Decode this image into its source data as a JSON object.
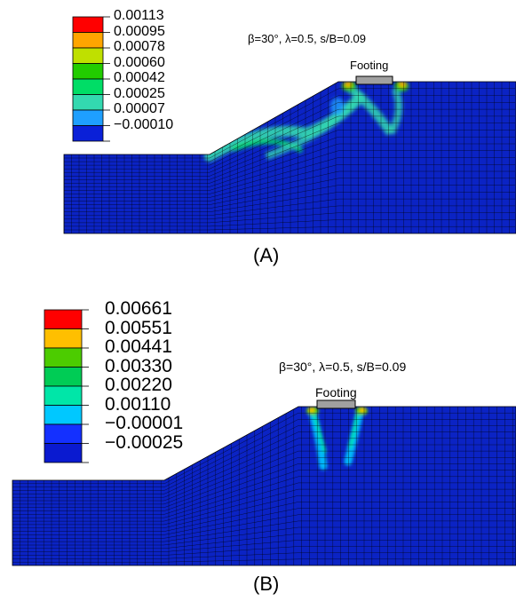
{
  "panel_a": {
    "caption": "(A)",
    "params": "β=30°, λ=0.5, s/B=0.09",
    "footing_label": "Footing",
    "legend": [
      {
        "value": "0.00113",
        "color": "#ff0000"
      },
      {
        "value": "0.00095",
        "color": "#ffa500"
      },
      {
        "value": "0.00078",
        "color": "#bfe000"
      },
      {
        "value": "0.00060",
        "color": "#22cc00"
      },
      {
        "value": "0.00042",
        "color": "#00dd66"
      },
      {
        "value": "0.00025",
        "color": "#33d9b0"
      },
      {
        "value": "0.00007",
        "color": "#1e9fff"
      },
      {
        "value": "-0.00010",
        "color": "#0a20d8"
      }
    ]
  },
  "panel_b": {
    "caption": "(B)",
    "params": "β=30°, λ=0.5, s/B=0.09",
    "footing_label": "Footing",
    "legend": [
      {
        "value": "0.00661",
        "color": "#ff0000"
      },
      {
        "value": "0.00551",
        "color": "#ffbf00"
      },
      {
        "value": "0.00441",
        "color": "#4ccc00"
      },
      {
        "value": "0.00330",
        "color": "#00cc55"
      },
      {
        "value": "0.00220",
        "color": "#00e6a8"
      },
      {
        "value": "0.00110",
        "color": "#00c8ff"
      },
      {
        "value": "-0.00001",
        "color": "#1430ff"
      },
      {
        "value": "-0.00025",
        "color": "#0a1ad0"
      }
    ]
  },
  "colors": {
    "mesh_fill": "#0b23c4",
    "mesh_line": "#000000",
    "footing_fill": "#a0a0a0"
  }
}
